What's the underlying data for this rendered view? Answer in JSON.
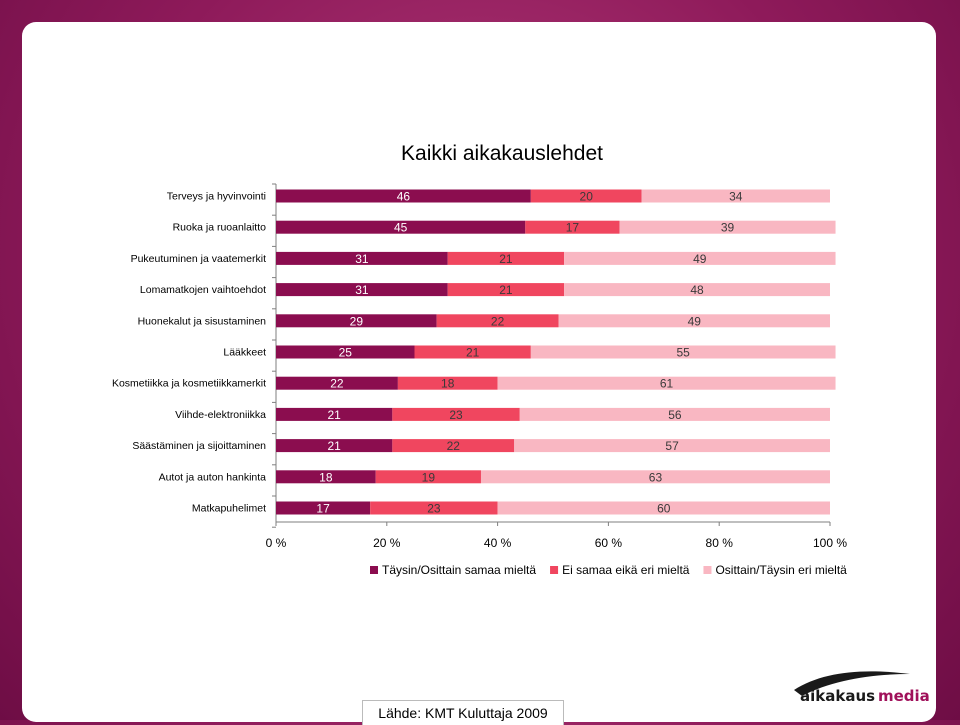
{
  "chart_data": {
    "type": "bar",
    "orientation": "horizontal-stacked-100",
    "title": "Kaikki aikakauslehdet",
    "categories": [
      "Terveys ja hyvinvointi",
      "Ruoka ja ruoanlaitto",
      "Pukeutuminen ja vaatemerkit",
      "Lomamatkojen vaihtoehdot",
      "Huonekalut ja sisustaminen",
      "Lääkkeet",
      "Kosmetiikka ja kosmetiikkamerkit",
      "Viihde-elektroniikka",
      "Säästäminen ja sijoittaminen",
      "Autot ja auton hankinta",
      "Matkapuhelimet"
    ],
    "series": [
      {
        "name": "Täysin/Osittain samaa mieltä",
        "color": "#8b0d4f",
        "values": [
          46,
          45,
          31,
          31,
          29,
          25,
          22,
          21,
          21,
          18,
          17
        ]
      },
      {
        "name": "Ei samaa eikä eri mieltä",
        "color": "#f0465f",
        "values": [
          20,
          17,
          21,
          21,
          22,
          21,
          18,
          23,
          22,
          19,
          23
        ]
      },
      {
        "name": "Osittain/Täysin eri mieltä",
        "color": "#f9b7c2",
        "values": [
          34,
          39,
          49,
          48,
          49,
          55,
          61,
          56,
          57,
          63,
          60
        ]
      }
    ],
    "xticks": [
      "0 %",
      "20 %",
      "40 %",
      "60 %",
      "80 %",
      "100 %"
    ],
    "xlim": [
      0,
      100
    ],
    "legend": "bottom"
  },
  "source": "Lähde: KMT Kuluttaja 2009",
  "logo": {
    "part1": "aikakaus",
    "part2": "media"
  }
}
